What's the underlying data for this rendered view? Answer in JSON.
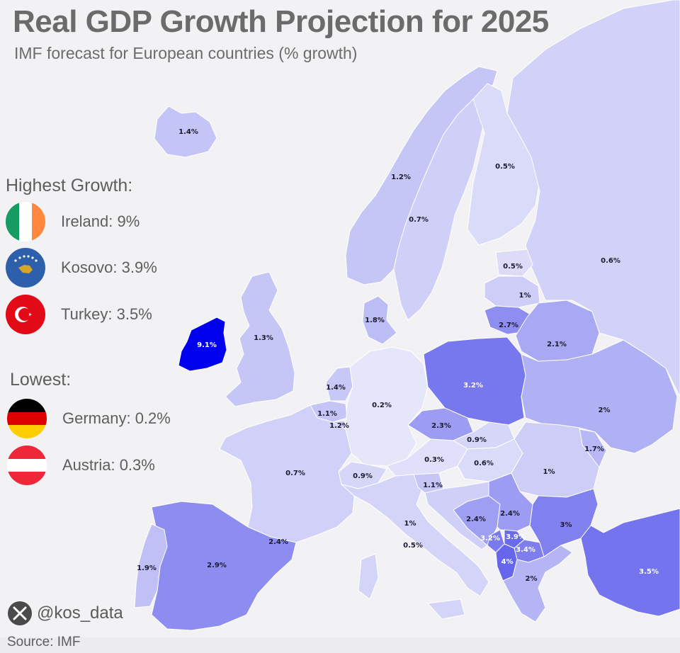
{
  "header": {
    "title": "Real GDP Growth Projection for 2025",
    "subtitle": "IMF forecast for European countries (% growth)"
  },
  "legend": {
    "highest_heading": "Highest Growth:",
    "highest": [
      {
        "text": "Ireland: 9%",
        "icon": "ireland-flag-icon"
      },
      {
        "text": "Kosovo: 3.9%",
        "icon": "kosovo-flag-icon"
      },
      {
        "text": "Turkey: 3.5%",
        "icon": "turkey-flag-icon"
      }
    ],
    "lowest_heading": "Lowest:",
    "lowest": [
      {
        "text": "Germany: 0.2%",
        "icon": "germany-flag-icon"
      },
      {
        "text": "Austria: 0.3%",
        "icon": "austria-flag-icon"
      }
    ]
  },
  "footer": {
    "handle": "@kos_data",
    "icon": "x-logo-icon",
    "source": "Source: IMF"
  },
  "colors": {
    "background": "#f2f2f4",
    "nonEurope": "#e9e9ee",
    "lowest": "#e6e6fb",
    "highest": "#0000ee",
    "label_dark": "#1a1a2e",
    "label_light": "#ffffff"
  },
  "map_labels": [
    {
      "id": "iceland",
      "text": "1.4%"
    },
    {
      "id": "ireland",
      "text": "9.1%"
    },
    {
      "id": "uk",
      "text": "1.3%"
    },
    {
      "id": "norway",
      "text": "1.2%"
    },
    {
      "id": "sweden",
      "text": "0.7%"
    },
    {
      "id": "finland",
      "text": "0.5%"
    },
    {
      "id": "estonia",
      "text": "0.5%"
    },
    {
      "id": "latvia",
      "text": "1%"
    },
    {
      "id": "lithuania",
      "text": "2.7%"
    },
    {
      "id": "belarus",
      "text": "2.1%"
    },
    {
      "id": "russia",
      "text": "0.6%"
    },
    {
      "id": "denmark",
      "text": "1.8%"
    },
    {
      "id": "netherlands",
      "text": "1.4%"
    },
    {
      "id": "belgium",
      "text": "1.1%"
    },
    {
      "id": "luxembourg",
      "text": "1.2%"
    },
    {
      "id": "germany",
      "text": "0.2%"
    },
    {
      "id": "poland",
      "text": "3.2%"
    },
    {
      "id": "ukraine",
      "text": "2%"
    },
    {
      "id": "moldova",
      "text": "1.7%"
    },
    {
      "id": "czechia",
      "text": "2.3%"
    },
    {
      "id": "slovakia",
      "text": "0.9%"
    },
    {
      "id": "austria",
      "text": "0.3%"
    },
    {
      "id": "hungary",
      "text": "0.6%"
    },
    {
      "id": "romania",
      "text": "1%"
    },
    {
      "id": "france",
      "text": "0.7%"
    },
    {
      "id": "switzerland",
      "text": "0.9%"
    },
    {
      "id": "slovenia",
      "text": "1.1%"
    },
    {
      "id": "croatia",
      "text": "1%"
    },
    {
      "id": "bosnia",
      "text": "2.4%"
    },
    {
      "id": "serbia",
      "text": "2.4%"
    },
    {
      "id": "montenegro",
      "text": "3.2%"
    },
    {
      "id": "kosovo",
      "text": "3.9%"
    },
    {
      "id": "northmacedonia",
      "text": "3.4%"
    },
    {
      "id": "albania",
      "text": "4%"
    },
    {
      "id": "bulgaria",
      "text": "3%"
    },
    {
      "id": "greece",
      "text": "2%"
    },
    {
      "id": "turkey",
      "text": "3.5%"
    },
    {
      "id": "italy",
      "text": "1%"
    },
    {
      "id": "italy_south",
      "text": "0.5%"
    },
    {
      "id": "spain",
      "text": "2.9%"
    },
    {
      "id": "portugal",
      "text": "1.9%"
    },
    {
      "id": "andorra",
      "text": "2.4%"
    }
  ]
}
